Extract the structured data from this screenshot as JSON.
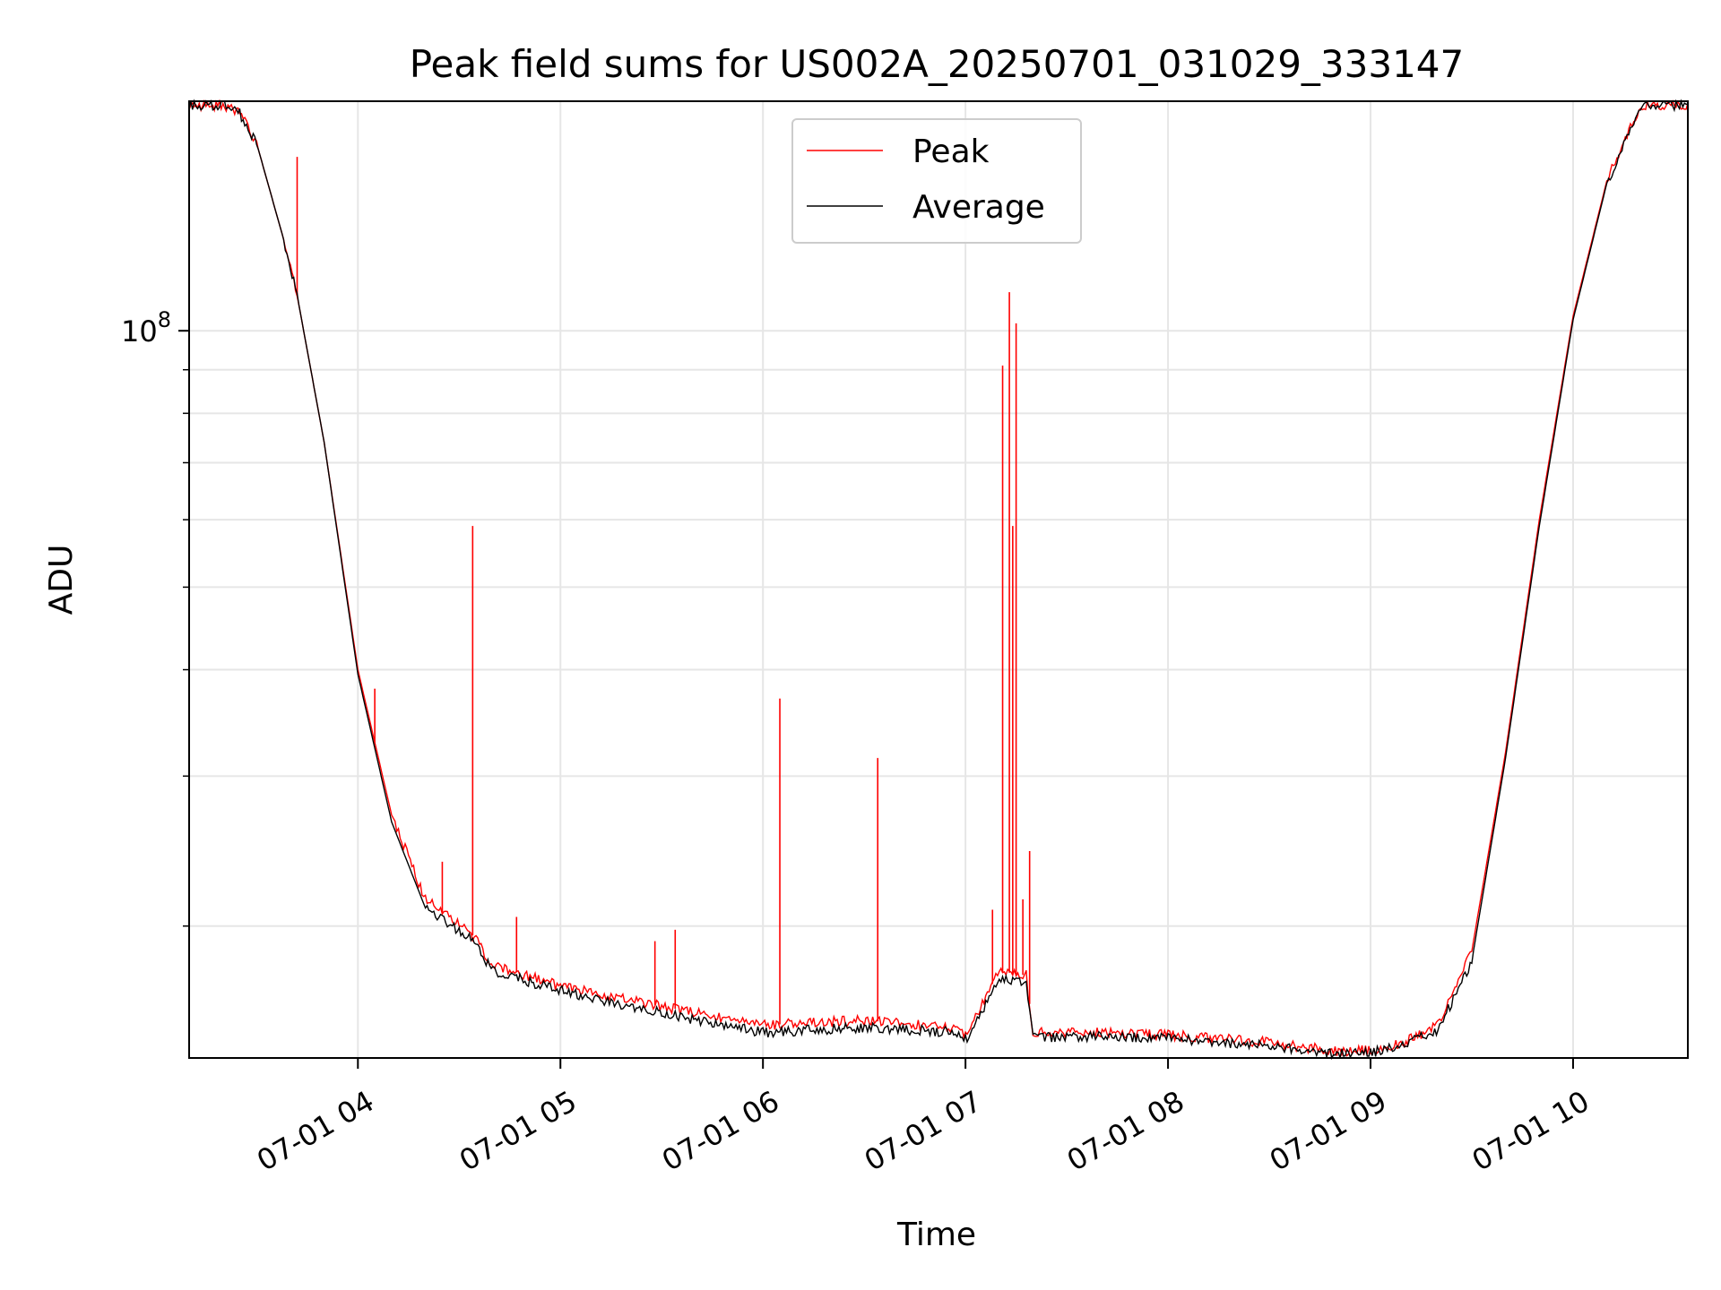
{
  "chart_data": {
    "type": "line",
    "title": "Peak field sums for US002A_20250701_031029_333147",
    "xlabel": "Time",
    "ylabel": "ADU",
    "x_axis": "time",
    "y_scale": "log",
    "xlim": [
      "07-01 03:10",
      "07-01 10:34"
    ],
    "ylim": [
      14000000,
      186000000
    ],
    "x_ticks": [
      "07-01 04",
      "07-01 05",
      "07-01 06",
      "07-01 07",
      "07-01 08",
      "07-01 09",
      "07-01 10"
    ],
    "x_tick_times": [
      "07-01 04:00",
      "07-01 05:00",
      "07-01 06:00",
      "07-01 07:00",
      "07-01 08:00",
      "07-01 09:00",
      "07-01 10:00"
    ],
    "y_tick_labels": [
      {
        "base": "10",
        "exponent": "8",
        "value": 100000000
      }
    ],
    "grid": true,
    "legend_position": "top-center",
    "series": [
      {
        "name": "Peak",
        "color": "#ff0000",
        "x": [
          "07-01 03:10",
          "07-01 03:20",
          "07-01 03:25",
          "07-01 03:30",
          "07-01 03:38",
          "07-01 03:42",
          "07-01 03:50",
          "07-01 04:00",
          "07-01 04:10",
          "07-01 04:20",
          "07-01 04:34",
          "07-01 04:40",
          "07-01 05:00",
          "07-01 05:30",
          "07-01 06:00",
          "07-01 06:30",
          "07-01 06:58",
          "07-01 07:00",
          "07-01 07:10",
          "07-01 07:18",
          "07-01 07:20",
          "07-01 07:40",
          "07-01 08:00",
          "07-01 08:30",
          "07-01 08:50",
          "07-01 09:00",
          "07-01 09:10",
          "07-01 09:20",
          "07-01 09:30",
          "07-01 09:40",
          "07-01 09:50",
          "07-01 10:00",
          "07-01 10:10",
          "07-01 10:20",
          "07-01 10:34"
        ],
        "values": [
          184000000,
          184000000,
          180000000,
          166000000,
          128000000,
          110000000,
          74000000,
          40000000,
          27000000,
          21500000,
          19500000,
          18000000,
          17000000,
          16100000,
          15300000,
          15500000,
          15200000,
          14900000,
          17700000,
          17500000,
          15000000,
          15000000,
          14900000,
          14600000,
          14250000,
          14300000,
          14600000,
          15300000,
          18700000,
          32000000,
          60000000,
          104000000,
          150000000,
          184000000,
          184000000
        ],
        "spikes": [
          {
            "x": "07-01 03:42",
            "value": 160000000
          },
          {
            "x": "07-01 04:05",
            "value": 38000000
          },
          {
            "x": "07-01 04:25",
            "value": 23800000
          },
          {
            "x": "07-01 04:34",
            "value": 59000000
          },
          {
            "x": "07-01 04:47",
            "value": 20500000
          },
          {
            "x": "07-01 05:28",
            "value": 19200000
          },
          {
            "x": "07-01 05:34",
            "value": 19800000
          },
          {
            "x": "07-01 06:05",
            "value": 37000000
          },
          {
            "x": "07-01 06:34",
            "value": 31500000
          },
          {
            "x": "07-01 07:08",
            "value": 20900000
          },
          {
            "x": "07-01 07:11",
            "value": 91000000
          },
          {
            "x": "07-01 07:13",
            "value": 111000000
          },
          {
            "x": "07-01 07:14",
            "value": 59000000
          },
          {
            "x": "07-01 07:15",
            "value": 102000000
          },
          {
            "x": "07-01 07:17",
            "value": 21500000
          },
          {
            "x": "07-01 07:19",
            "value": 24500000
          }
        ]
      },
      {
        "name": "Average",
        "color": "#000000",
        "x": [
          "07-01 03:10",
          "07-01 03:20",
          "07-01 03:25",
          "07-01 03:30",
          "07-01 03:38",
          "07-01 03:42",
          "07-01 03:50",
          "07-01 04:00",
          "07-01 04:10",
          "07-01 04:20",
          "07-01 04:34",
          "07-01 04:40",
          "07-01 05:00",
          "07-01 05:30",
          "07-01 06:00",
          "07-01 06:30",
          "07-01 06:58",
          "07-01 07:00",
          "07-01 07:10",
          "07-01 07:18",
          "07-01 07:20",
          "07-01 07:40",
          "07-01 08:00",
          "07-01 08:30",
          "07-01 08:50",
          "07-01 09:00",
          "07-01 09:10",
          "07-01 09:20",
          "07-01 09:30",
          "07-01 09:40",
          "07-01 09:50",
          "07-01 10:00",
          "07-01 10:10",
          "07-01 10:20",
          "07-01 10:34"
        ],
        "values": [
          184000000,
          184000000,
          180000000,
          166000000,
          128000000,
          110000000,
          74000000,
          39500000,
          26500000,
          21000000,
          19300000,
          17700000,
          16800000,
          15800000,
          15000000,
          15200000,
          15000000,
          14700000,
          17300000,
          17100000,
          14800000,
          14850000,
          14750000,
          14450000,
          14150000,
          14200000,
          14500000,
          15100000,
          18200000,
          31500000,
          59000000,
          103000000,
          149000000,
          184000000,
          184000000
        ]
      }
    ]
  }
}
